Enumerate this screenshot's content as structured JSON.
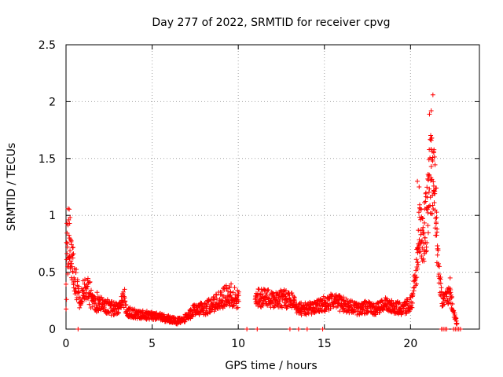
{
  "chart_data": {
    "type": "scatter",
    "title": "Day 277 of 2022, SRMTID for receiver cpvg",
    "xlabel": "GPS time / hours",
    "ylabel": "SRMTID / TECUs",
    "xlim": [
      0,
      24
    ],
    "ylim": [
      0,
      2.5
    ],
    "x_ticks": [
      0,
      5,
      10,
      15,
      20
    ],
    "x_tick_labels": [
      "0",
      "5",
      "10",
      "15",
      "20"
    ],
    "y_ticks": [
      0,
      0.5,
      1,
      1.5,
      2,
      2.5
    ],
    "y_tick_labels": [
      "0",
      "0.5",
      "1",
      "1.5",
      "2",
      "2.5"
    ],
    "grid": true,
    "series": [
      {
        "name": "SRMTID",
        "color": "#ff0000",
        "marker": "plus",
        "envelope": [
          [
            0.0,
            0.55,
            0.4
          ],
          [
            0.1,
            0.9,
            0.45
          ],
          [
            0.2,
            0.95,
            0.4
          ],
          [
            0.3,
            0.7,
            0.3
          ],
          [
            0.5,
            0.55,
            0.25
          ],
          [
            0.7,
            0.35,
            0.15
          ],
          [
            0.9,
            0.3,
            0.15
          ],
          [
            1.0,
            0.4,
            0.15
          ],
          [
            1.2,
            0.45,
            0.2
          ],
          [
            1.5,
            0.3,
            0.15
          ],
          [
            2.0,
            0.25,
            0.12
          ],
          [
            2.5,
            0.22,
            0.1
          ],
          [
            3.0,
            0.2,
            0.08
          ],
          [
            3.3,
            0.3,
            0.08
          ],
          [
            3.5,
            0.18,
            0.07
          ],
          [
            4.0,
            0.15,
            0.06
          ],
          [
            5.0,
            0.13,
            0.05
          ],
          [
            5.5,
            0.12,
            0.05
          ],
          [
            6.0,
            0.1,
            0.04
          ],
          [
            6.5,
            0.08,
            0.04
          ],
          [
            7.0,
            0.12,
            0.05
          ],
          [
            7.5,
            0.2,
            0.08
          ],
          [
            8.0,
            0.2,
            0.08
          ],
          [
            8.5,
            0.25,
            0.1
          ],
          [
            9.0,
            0.3,
            0.12
          ],
          [
            9.5,
            0.35,
            0.15
          ],
          [
            10.0,
            0.3,
            0.12
          ],
          [
            11.0,
            0.3,
            0.12
          ],
          [
            11.5,
            0.32,
            0.12
          ],
          [
            12.0,
            0.28,
            0.1
          ],
          [
            12.5,
            0.3,
            0.12
          ],
          [
            13.0,
            0.3,
            0.12
          ],
          [
            13.5,
            0.2,
            0.08
          ],
          [
            14.0,
            0.2,
            0.08
          ],
          [
            14.5,
            0.22,
            0.08
          ],
          [
            15.0,
            0.25,
            0.1
          ],
          [
            15.5,
            0.28,
            0.1
          ],
          [
            16.0,
            0.25,
            0.1
          ],
          [
            16.5,
            0.22,
            0.08
          ],
          [
            17.0,
            0.2,
            0.08
          ],
          [
            17.5,
            0.22,
            0.08
          ],
          [
            18.0,
            0.2,
            0.08
          ],
          [
            18.5,
            0.25,
            0.08
          ],
          [
            19.0,
            0.22,
            0.08
          ],
          [
            19.5,
            0.2,
            0.08
          ],
          [
            20.0,
            0.25,
            0.1
          ],
          [
            20.3,
            0.5,
            0.2
          ],
          [
            20.5,
            1.0,
            0.4
          ],
          [
            20.7,
            0.9,
            0.35
          ],
          [
            21.0,
            1.2,
            0.5
          ],
          [
            21.2,
            1.6,
            0.6
          ],
          [
            21.4,
            1.4,
            0.5
          ],
          [
            21.6,
            0.6,
            0.2
          ],
          [
            21.8,
            0.3,
            0.1
          ],
          [
            22.0,
            0.3,
            0.1
          ],
          [
            22.3,
            0.35,
            0.12
          ],
          [
            22.5,
            0.15,
            0.05
          ],
          [
            22.7,
            0.05,
            0.02
          ]
        ],
        "peaks": [
          [
            0.05,
            0.93
          ],
          [
            0.15,
            0.96
          ],
          [
            0.2,
            0.8
          ],
          [
            3.4,
            0.35
          ],
          [
            9.5,
            0.37
          ],
          [
            20.4,
            1.3
          ],
          [
            20.5,
            1.25
          ],
          [
            21.0,
            1.32
          ],
          [
            21.1,
            1.89
          ],
          [
            21.2,
            1.92
          ],
          [
            21.3,
            2.06
          ],
          [
            21.35,
            1.55
          ],
          [
            21.2,
            1.66
          ],
          [
            21.25,
            1.49
          ],
          [
            22.3,
            0.45
          ]
        ],
        "zeros": [
          0.7,
          10.5,
          11.1,
          13.0,
          13.5,
          14.0,
          14.9,
          21.8,
          21.9,
          22.0,
          22.1,
          22.5,
          22.6,
          22.7,
          22.8,
          22.9
        ]
      }
    ]
  }
}
